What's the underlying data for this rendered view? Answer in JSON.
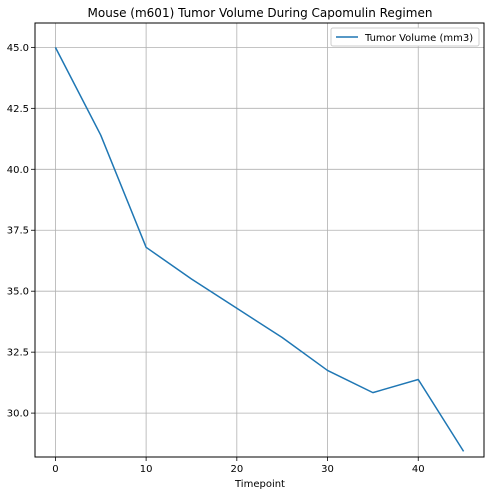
{
  "chart_data": {
    "type": "line",
    "title": "Mouse (m601) Tumor Volume During Capomulin Regimen",
    "xlabel": "Timepoint",
    "ylabel": "",
    "xlim": [
      -2.25,
      47.25
    ],
    "ylim": [
      28.2,
      46.0
    ],
    "xticks": [
      0,
      10,
      20,
      30,
      40
    ],
    "xtick_labels": [
      "0",
      "10",
      "20",
      "30",
      "40"
    ],
    "yticks": [
      30.0,
      32.5,
      35.0,
      37.5,
      40.0,
      42.5,
      45.0
    ],
    "ytick_labels": [
      "30.0",
      "32.5",
      "35.0",
      "37.5",
      "40.0",
      "42.5",
      "45.0"
    ],
    "grid": true,
    "legend_position": "top-right",
    "series": [
      {
        "name": "Tumor Volume (mm3)",
        "color": "#1f77b4",
        "x": [
          0,
          5,
          10,
          15,
          20,
          25,
          30,
          35,
          40,
          45
        ],
        "y": [
          45.0,
          41.4,
          36.8,
          35.5,
          34.3,
          33.1,
          31.75,
          30.84,
          31.38,
          28.43
        ]
      }
    ]
  }
}
